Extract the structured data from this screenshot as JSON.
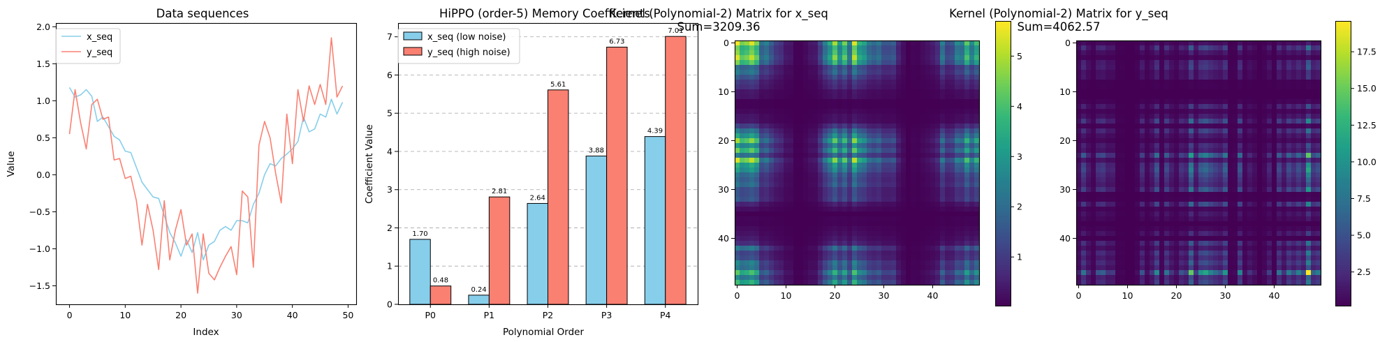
{
  "colors": {
    "x": "#87ceeb",
    "y": "#fa8072",
    "cmap": [
      "#440154",
      "#482878",
      "#3e4989",
      "#31688e",
      "#26828e",
      "#1f9e89",
      "#35b779",
      "#6ece58",
      "#b5de2b",
      "#fde725"
    ]
  },
  "chart_data": [
    {
      "type": "line",
      "title": "Data sequences",
      "xlabel": "Index",
      "ylabel": "Value",
      "xlim": [
        -2.45,
        51.45
      ],
      "ylim": [
        -1.75,
        2.05
      ],
      "xticks": [
        "0",
        "10",
        "20",
        "30",
        "40",
        "50"
      ],
      "yticks": [
        "−1.5",
        "−1.0",
        "−0.5",
        "0.0",
        "0.5",
        "1.0",
        "1.5",
        "2.0"
      ],
      "legend": [
        "x_seq",
        "y_seq"
      ],
      "legend_position": "upper-left",
      "x": [
        0,
        1,
        2,
        3,
        4,
        5,
        6,
        7,
        8,
        9,
        10,
        11,
        12,
        13,
        14,
        15,
        16,
        17,
        18,
        19,
        20,
        21,
        22,
        23,
        24,
        25,
        26,
        27,
        28,
        29,
        30,
        31,
        32,
        33,
        34,
        35,
        36,
        37,
        38,
        39,
        40,
        41,
        42,
        43,
        44,
        45,
        46,
        47,
        48,
        49
      ],
      "series": [
        {
          "name": "x_seq",
          "values": [
            1.18,
            1.05,
            1.08,
            1.15,
            1.06,
            0.72,
            0.78,
            0.65,
            0.52,
            0.47,
            0.32,
            0.3,
            0.1,
            -0.1,
            -0.2,
            -0.3,
            -0.32,
            -0.55,
            -0.78,
            -0.92,
            -1.1,
            -0.88,
            -1.05,
            -0.78,
            -1.15,
            -0.95,
            -0.9,
            -0.75,
            -0.7,
            -0.75,
            -0.62,
            -0.62,
            -0.65,
            -0.4,
            -0.25,
            0.0,
            0.15,
            0.12,
            0.22,
            0.28,
            0.35,
            0.45,
            0.78,
            0.58,
            0.62,
            0.82,
            0.78,
            1.02,
            0.82,
            0.98
          ]
        },
        {
          "name": "y_seq",
          "values": [
            0.55,
            1.15,
            0.7,
            0.35,
            0.95,
            1.02,
            0.75,
            0.78,
            0.2,
            0.22,
            -0.05,
            -0.02,
            -0.35,
            -0.95,
            -0.4,
            -0.75,
            -1.28,
            -0.35,
            -1.15,
            -0.75,
            -0.47,
            -0.95,
            -0.8,
            -1.6,
            -0.8,
            -1.33,
            -1.42,
            -1.25,
            -1.1,
            -0.97,
            -1.35,
            -0.22,
            -0.3,
            -1.25,
            0.4,
            0.72,
            0.5,
            0.02,
            -0.38,
            0.82,
            0.15,
            1.15,
            0.72,
            1.2,
            0.95,
            1.22,
            0.95,
            1.85,
            1.05,
            1.2
          ]
        }
      ]
    },
    {
      "type": "bar",
      "title": "HiPPO (order-5) Memory Coefficients",
      "xlabel": "Polynomial Order",
      "ylabel": "Coefficient Value",
      "ylim": [
        0,
        7.36
      ],
      "categories": [
        "P0",
        "P1",
        "P2",
        "P3",
        "P4"
      ],
      "yticks": [
        "0",
        "1",
        "2",
        "3",
        "4",
        "5",
        "6",
        "7"
      ],
      "legend_position": "upper-left",
      "grid": "y-dashed",
      "series": [
        {
          "name": "x_seq (low noise)",
          "values": [
            1.7,
            0.24,
            2.64,
            3.88,
            4.39
          ],
          "labels": [
            "1.70",
            "0.24",
            "2.64",
            "3.88",
            "4.39"
          ]
        },
        {
          "name": "y_seq (high noise)",
          "values": [
            0.48,
            2.81,
            5.61,
            6.73,
            7.01
          ],
          "labels": [
            "0.48",
            "2.81",
            "5.61",
            "6.73",
            "7.01"
          ]
        }
      ]
    },
    {
      "type": "heatmap",
      "title": "Kernel (Polynomial-2) Matrix for x_seq",
      "subtitle": "Sum=3209.36",
      "size": 50,
      "xticks": [
        "0",
        "10",
        "20",
        "30",
        "40"
      ],
      "yticks": [
        "0",
        "10",
        "20",
        "30",
        "40"
      ],
      "colorbar_range": [
        0.03,
        5.7
      ],
      "colorbar_ticks": [
        "1",
        "2",
        "3",
        "4",
        "5"
      ],
      "source_series": "x_seq"
    },
    {
      "type": "heatmap",
      "title": "Kernel (Polynomial-2) Matrix for y_seq",
      "subtitle": "Sum=4062.57",
      "size": 50,
      "xticks": [
        "0",
        "10",
        "20",
        "30",
        "40"
      ],
      "yticks": [
        "0",
        "10",
        "20",
        "30",
        "40"
      ],
      "colorbar_range": [
        0.2,
        19.6
      ],
      "colorbar_ticks": [
        "2.5",
        "5.0",
        "7.5",
        "10.0",
        "12.5",
        "15.0",
        "17.5"
      ],
      "source_series": "y_seq"
    }
  ]
}
